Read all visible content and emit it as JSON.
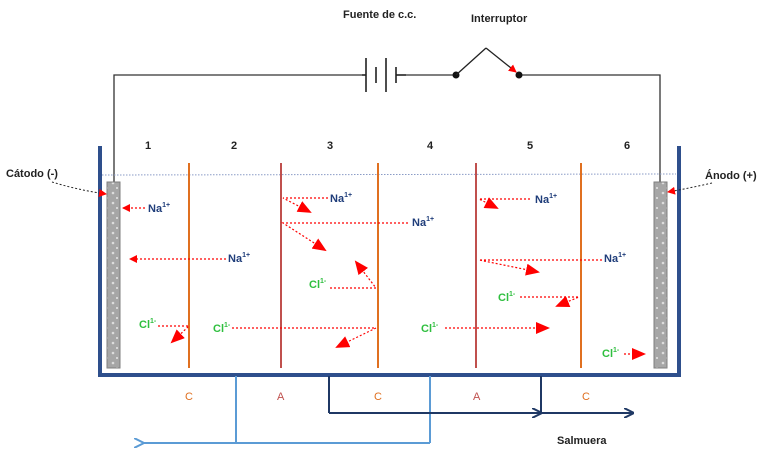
{
  "labels": {
    "power_source": "Fuente de c.c.",
    "switch": "Interruptor",
    "cathode": "Cátodo (-)",
    "anode": "Ánodo (+)",
    "brine": "Salmuera"
  },
  "compartments": [
    "1",
    "2",
    "3",
    "4",
    "5",
    "6"
  ],
  "membranes": [
    "C",
    "A",
    "C",
    "A",
    "C"
  ],
  "ions": {
    "na": "Na",
    "na_charge": "1+",
    "cl": "Cl",
    "cl_charge": "1-"
  },
  "colors": {
    "tank": "#2e4f8c",
    "cation_membrane": "#e07020",
    "anion_membrane": "#c0504d",
    "arrow": "#ff0000",
    "na_text": "#1f3d7a",
    "cl_text": "#2fbf3f",
    "pipe_light": "#5b9bd5",
    "pipe_dark": "#1f3864"
  }
}
